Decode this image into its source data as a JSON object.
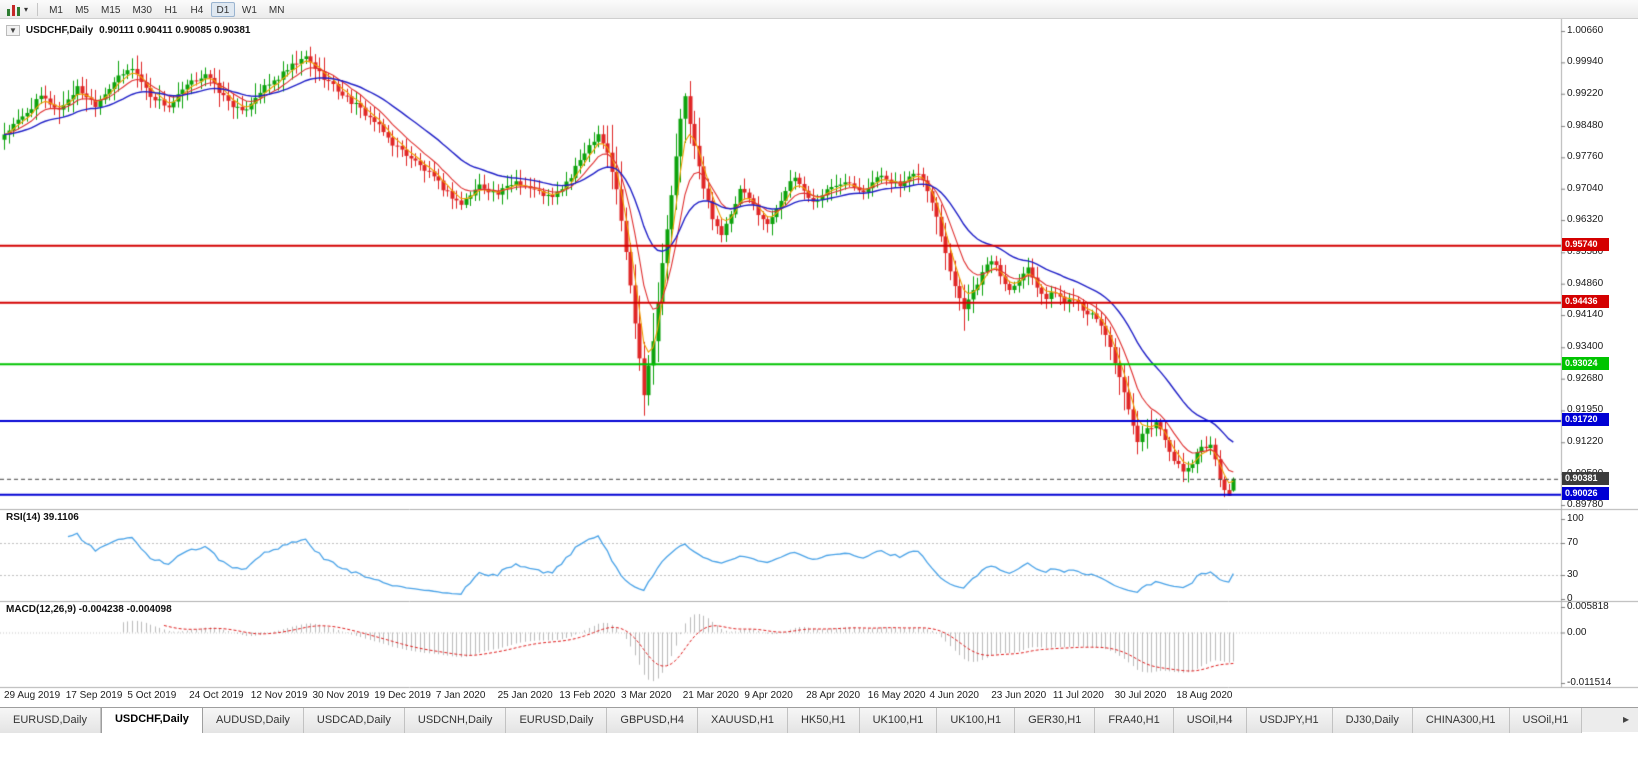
{
  "toolbar": {
    "timeframes": [
      "M1",
      "M5",
      "M15",
      "M30",
      "H1",
      "H4",
      "D1",
      "W1",
      "MN"
    ],
    "active_timeframe": "D1"
  },
  "chart_header": {
    "symbol_period": "USDCHF,Daily",
    "ohlc_text": "0.90111 0.90411 0.90085 0.90381"
  },
  "price_axis_ticks": [
    "1.00660",
    "0.99940",
    "0.99220",
    "0.98480",
    "0.97760",
    "0.97040",
    "0.96320",
    "0.95580",
    "0.94860",
    "0.94140",
    "0.93400",
    "0.92680",
    "0.91950",
    "0.91220",
    "0.90500",
    "0.89780"
  ],
  "date_axis_labels": [
    "29 Aug 2019",
    "17 Sep 2019",
    "5 Oct 2019",
    "24 Oct 2019",
    "12 Nov 2019",
    "30 Nov 2019",
    "19 Dec 2019",
    "7 Jan 2020",
    "25 Jan 2020",
    "13 Feb 2020",
    "3 Mar 2020",
    "21 Mar 2020",
    "9 Apr 2020",
    "28 Apr 2020",
    "16 May 2020",
    "4 Jun 2020",
    "23 Jun 2020",
    "11 Jul 2020",
    "30 Jul 2020",
    "18 Aug 2020"
  ],
  "rsi_panel": {
    "label": "RSI(14) 39.1106",
    "value": 39.1106,
    "line_color": "#4aa3e8",
    "ticks": [
      {
        "label": "100",
        "value": 100
      },
      {
        "label": "70",
        "value": 70
      },
      {
        "label": "30",
        "value": 30
      },
      {
        "label": "0",
        "value": 0
      }
    ],
    "level_lines": [
      70,
      30
    ]
  },
  "macd_panel": {
    "label": "MACD(12,26,9) -0.004238 -0.004098",
    "values": {
      "macd": -0.004238,
      "signal": -0.004098
    },
    "histogram_color": "#bbbbbb",
    "signal_color": "#e02020",
    "ticks": [
      {
        "label": "0.005818",
        "value": 0.005818
      },
      {
        "label": "0.00",
        "value": 0
      },
      {
        "label": "-0.011514",
        "value": -0.011514
      }
    ]
  },
  "tab_bar": {
    "tabs": [
      "EURUSD,Daily",
      "USDCHF,Daily",
      "AUDUSD,Daily",
      "USDCAD,Daily",
      "USDCNH,Daily",
      "EURUSD,Daily",
      "GBPUSD,H4",
      "XAUUSD,H1",
      "HK50,H1",
      "UK100,H1",
      "UK100,H1",
      "GER30,H1",
      "FRA40,H1",
      "USOil,H4",
      "USDJPY,H1",
      "DJ30,Daily",
      "CHINA300,H1",
      "USOil,H1"
    ],
    "active_index": 1,
    "scroll_right_glyph": "▸"
  },
  "chart_data": {
    "type": "candlestick",
    "symbol": "USDCHF",
    "period": "Daily",
    "bar_count": 270,
    "last_ohlc": {
      "open": 0.90111,
      "high": 0.90411,
      "low": 0.90085,
      "close": 0.90381
    },
    "price_range": {
      "top": 1.0066,
      "bottom": 0.8978
    },
    "up_color": "#0ca30c",
    "down_color": "#e02626",
    "moving_averages": [
      {
        "period": 4,
        "method": "ema",
        "color": "#f0a000"
      },
      {
        "period": 9,
        "method": "ema",
        "color": "#e03030"
      },
      {
        "period": 24,
        "method": "ema",
        "color": "#2020c8"
      }
    ],
    "horizontal_lines": [
      {
        "price": 0.9574,
        "label": "0.95740",
        "color": "#d40000"
      },
      {
        "price": 0.94436,
        "label": "0.94436",
        "color": "#d40000"
      },
      {
        "price": 0.93024,
        "label": "0.93024",
        "color": "#00c400"
      },
      {
        "price": 0.9172,
        "label": "0.91720",
        "color": "#0000d4"
      },
      {
        "price": 0.90026,
        "label": "0.90026",
        "color": "#0000d4"
      }
    ],
    "current_price": {
      "price": 0.90381,
      "label": "0.90381",
      "badge_color": "#3c3c3c"
    },
    "indicators": {
      "rsi_period": 14,
      "macd": [
        12,
        26,
        9
      ]
    },
    "close_anchors": [
      [
        0,
        0.983
      ],
      [
        4,
        0.9868
      ],
      [
        8,
        0.9915
      ],
      [
        12,
        0.9885
      ],
      [
        16,
        0.9935
      ],
      [
        20,
        0.9898
      ],
      [
        24,
        0.995
      ],
      [
        28,
        0.9982
      ],
      [
        32,
        0.9918
      ],
      [
        36,
        0.9892
      ],
      [
        40,
        0.994
      ],
      [
        44,
        0.9968
      ],
      [
        48,
        0.9915
      ],
      [
        52,
        0.9878
      ],
      [
        56,
        0.9928
      ],
      [
        60,
        0.9958
      ],
      [
        63,
        0.9985
      ],
      [
        66,
        1.0005
      ],
      [
        69,
        0.997
      ],
      [
        73,
        0.993
      ],
      [
        77,
        0.9895
      ],
      [
        81,
        0.9858
      ],
      [
        85,
        0.9808
      ],
      [
        89,
        0.9775
      ],
      [
        93,
        0.9738
      ],
      [
        97,
        0.9695
      ],
      [
        100,
        0.9668
      ],
      [
        104,
        0.9712
      ],
      [
        108,
        0.9692
      ],
      [
        112,
        0.9722
      ],
      [
        116,
        0.97
      ],
      [
        120,
        0.9682
      ],
      [
        124,
        0.973
      ],
      [
        127,
        0.979
      ],
      [
        130,
        0.9832
      ],
      [
        132,
        0.9788
      ],
      [
        134,
        0.97
      ],
      [
        136,
        0.956
      ],
      [
        138,
        0.94
      ],
      [
        140,
        0.9235
      ],
      [
        142,
        0.936
      ],
      [
        144,
        0.953
      ],
      [
        146,
        0.969
      ],
      [
        148,
        0.986
      ],
      [
        149,
        0.9915
      ],
      [
        151,
        0.98
      ],
      [
        153,
        0.9705
      ],
      [
        155,
        0.964
      ],
      [
        157,
        0.96
      ],
      [
        159,
        0.964
      ],
      [
        161,
        0.97
      ],
      [
        163,
        0.968
      ],
      [
        165,
        0.965
      ],
      [
        167,
        0.962
      ],
      [
        169,
        0.9662
      ],
      [
        171,
        0.97
      ],
      [
        173,
        0.973
      ],
      [
        175,
        0.97
      ],
      [
        177,
        0.9672
      ],
      [
        180,
        0.97
      ],
      [
        184,
        0.9725
      ],
      [
        188,
        0.97
      ],
      [
        192,
        0.9735
      ],
      [
        196,
        0.971
      ],
      [
        200,
        0.9742
      ],
      [
        202,
        0.97
      ],
      [
        204,
        0.964
      ],
      [
        206,
        0.956
      ],
      [
        208,
        0.948
      ],
      [
        210,
        0.9432
      ],
      [
        212,
        0.947
      ],
      [
        214,
        0.951
      ],
      [
        216,
        0.9542
      ],
      [
        218,
        0.9505
      ],
      [
        220,
        0.9472
      ],
      [
        222,
        0.95
      ],
      [
        224,
        0.9522
      ],
      [
        226,
        0.9482
      ],
      [
        228,
        0.9452
      ],
      [
        230,
        0.9468
      ],
      [
        232,
        0.9442
      ],
      [
        234,
        0.9455
      ],
      [
        236,
        0.943
      ],
      [
        238,
        0.9412
      ],
      [
        240,
        0.9392
      ],
      [
        242,
        0.9342
      ],
      [
        244,
        0.9272
      ],
      [
        246,
        0.9192
      ],
      [
        248,
        0.9122
      ],
      [
        250,
        0.915
      ],
      [
        252,
        0.9168
      ],
      [
        254,
        0.913
      ],
      [
        256,
        0.9082
      ],
      [
        258,
        0.9052
      ],
      [
        260,
        0.9075
      ],
      [
        262,
        0.9112
      ],
      [
        264,
        0.9118
      ],
      [
        265,
        0.9082
      ],
      [
        266,
        0.904
      ],
      [
        267,
        0.9008
      ],
      [
        268,
        0.9002
      ],
      [
        269,
        0.90381
      ]
    ],
    "wick_overrides": [
      {
        "i": 66,
        "h": 1.0021
      },
      {
        "i": 140,
        "l": 0.9183
      },
      {
        "i": 149,
        "h": 0.9923
      },
      {
        "i": 210,
        "l": 0.9378
      },
      {
        "i": 252,
        "h": 0.9176
      },
      {
        "i": 267,
        "l": 0.8996
      },
      {
        "i": 268,
        "l": 0.8999
      },
      {
        "i": 269,
        "o": 0.90111,
        "h": 0.90411,
        "l": 0.90085,
        "c": 0.90381
      }
    ],
    "volatility_zones": [
      [
        12,
        70,
        1.25
      ],
      [
        132,
        152,
        2.4
      ],
      [
        204,
        212,
        1.6
      ],
      [
        242,
        252,
        1.6
      ]
    ]
  }
}
